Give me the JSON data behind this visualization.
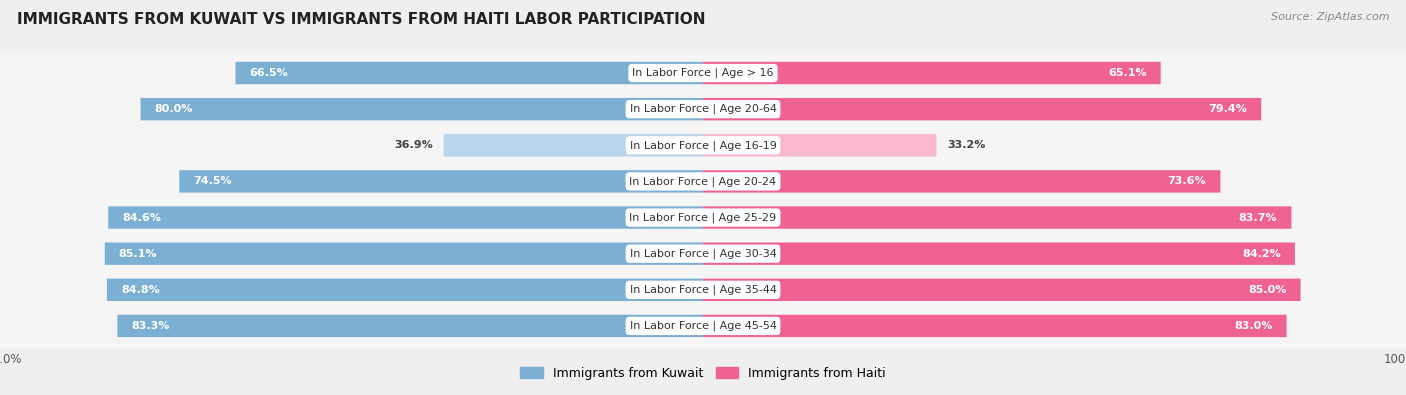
{
  "title": "IMMIGRANTS FROM KUWAIT VS IMMIGRANTS FROM HAITI LABOR PARTICIPATION",
  "source": "Source: ZipAtlas.com",
  "categories": [
    "In Labor Force | Age > 16",
    "In Labor Force | Age 20-64",
    "In Labor Force | Age 16-19",
    "In Labor Force | Age 20-24",
    "In Labor Force | Age 25-29",
    "In Labor Force | Age 30-34",
    "In Labor Force | Age 35-44",
    "In Labor Force | Age 45-54"
  ],
  "kuwait_values": [
    66.5,
    80.0,
    36.9,
    74.5,
    84.6,
    85.1,
    84.8,
    83.3
  ],
  "haiti_values": [
    65.1,
    79.4,
    33.2,
    73.6,
    83.7,
    84.2,
    85.0,
    83.0
  ],
  "kuwait_color": "#7bafd4",
  "kuwait_light_color": "#b8d4ea",
  "haiti_color": "#f06292",
  "haiti_light_color": "#f9b8cc",
  "background_color": "#efefef",
  "row_bg_color": "#e0e0e0",
  "row_inner_color": "#f5f5f5",
  "max_value": 100.0,
  "legend_kuwait": "Immigrants from Kuwait",
  "legend_haiti": "Immigrants from Haiti",
  "title_fontsize": 11,
  "source_fontsize": 8,
  "bar_label_fontsize": 8,
  "cat_label_fontsize": 8
}
